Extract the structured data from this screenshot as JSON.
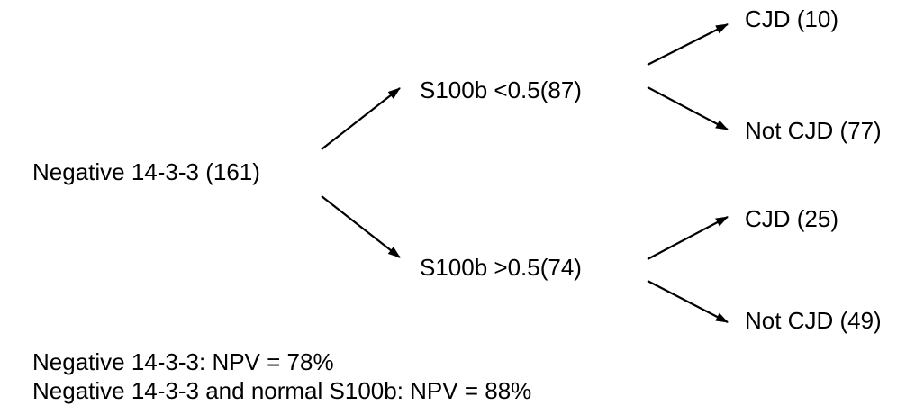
{
  "diagram": {
    "root": {
      "label": "Negative 14-3-3 (161)"
    },
    "branches": [
      {
        "label": "S100b <0.5(87)",
        "children": [
          {
            "label": "CJD (10)"
          },
          {
            "label": "Not CJD (77)"
          }
        ]
      },
      {
        "label": "S100b >0.5(74)",
        "children": [
          {
            "label": "CJD (25)"
          },
          {
            "label": "Not CJD (49)"
          }
        ]
      }
    ]
  },
  "notes": [
    "Negative 14-3-3: NPV = 78%",
    "Negative 14-3-3 and normal S100b: NPV = 88%"
  ],
  "colors": {
    "text": "#000000",
    "arrow": "#000000",
    "background": "#ffffff"
  }
}
